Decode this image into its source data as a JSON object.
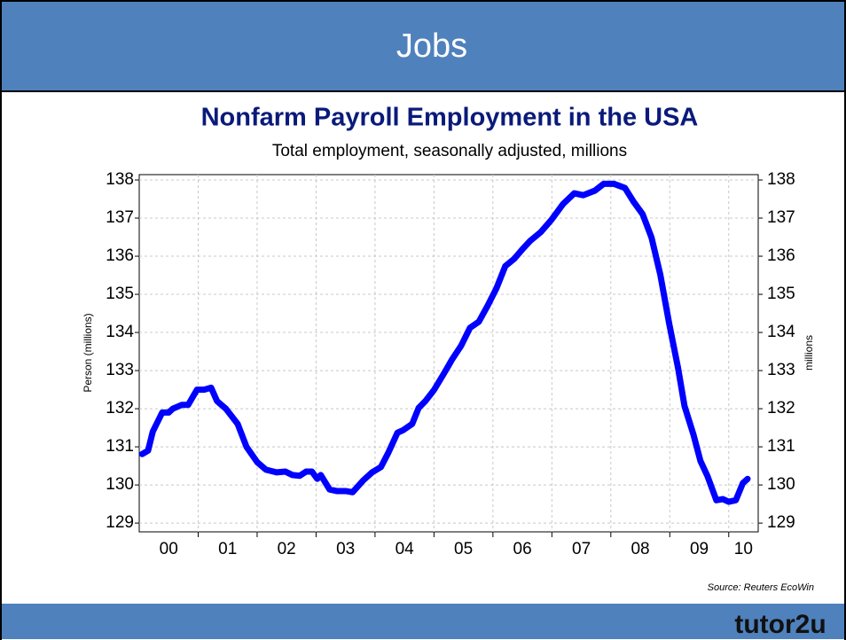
{
  "slide_title": "Jobs",
  "logo": "tutor2u",
  "chart_data": {
    "type": "line",
    "title": "Nonfarm Payroll Employment in the USA",
    "subtitle": "Total employment, seasonally adjusted, millions",
    "ylabel": "Person (millions)",
    "y2label": "millions",
    "source": "Source: Reuters EcoWin",
    "xlim": [
      0,
      10.5
    ],
    "xticks": [
      {
        "value": 0.5,
        "label": "00"
      },
      {
        "value": 1.5,
        "label": "01"
      },
      {
        "value": 2.5,
        "label": "02"
      },
      {
        "value": 3.5,
        "label": "03"
      },
      {
        "value": 4.5,
        "label": "04"
      },
      {
        "value": 5.5,
        "label": "05"
      },
      {
        "value": 6.5,
        "label": "06"
      },
      {
        "value": 7.5,
        "label": "07"
      },
      {
        "value": 8.5,
        "label": "08"
      },
      {
        "value": 9.5,
        "label": "09"
      },
      {
        "value": 10.25,
        "label": "10"
      }
    ],
    "xgrid": [
      1,
      2,
      3,
      4,
      5,
      6,
      7,
      8,
      9,
      10
    ],
    "ylim": [
      128.77,
      138.14
    ],
    "yticks": [
      129,
      130,
      131,
      132,
      133,
      134,
      135,
      136,
      137,
      138
    ],
    "y2lim": [
      128.77,
      138.14
    ],
    "y2ticks": [
      129,
      130,
      131,
      132,
      133,
      134,
      135,
      136,
      137,
      138
    ],
    "grid": true,
    "series": [
      {
        "name": "Nonfarm Payroll Employment",
        "color": "#0000ff",
        "x": [
          0.05,
          0.15,
          0.23,
          0.39,
          0.5,
          0.57,
          0.72,
          0.83,
          0.98,
          1.1,
          1.22,
          1.32,
          1.47,
          1.67,
          1.82,
          2.0,
          2.15,
          2.33,
          2.48,
          2.6,
          2.72,
          2.83,
          2.93,
          3.02,
          3.08,
          3.23,
          3.35,
          3.5,
          3.62,
          3.8,
          3.95,
          4.1,
          4.23,
          4.38,
          4.48,
          4.63,
          4.74,
          4.86,
          5.0,
          5.16,
          5.31,
          5.46,
          5.61,
          5.76,
          5.91,
          6.06,
          6.21,
          6.36,
          6.51,
          6.63,
          6.81,
          6.99,
          7.19,
          7.38,
          7.53,
          7.73,
          7.88,
          8.05,
          8.24,
          8.39,
          8.54,
          8.69,
          8.84,
          8.99,
          9.14,
          9.25,
          9.4,
          9.52,
          9.64,
          9.79,
          9.9,
          10.0,
          10.12,
          10.24,
          10.32
        ],
        "values": [
          130.81,
          130.9,
          131.4,
          131.9,
          131.9,
          132.0,
          132.1,
          132.1,
          132.5,
          132.5,
          132.55,
          132.2,
          132.0,
          131.6,
          131.0,
          130.6,
          130.4,
          130.33,
          130.35,
          130.26,
          130.24,
          130.35,
          130.35,
          130.16,
          130.26,
          129.88,
          129.84,
          129.84,
          129.81,
          130.12,
          130.33,
          130.47,
          130.86,
          131.37,
          131.44,
          131.6,
          132.02,
          132.21,
          132.49,
          132.9,
          133.3,
          133.65,
          134.12,
          134.28,
          134.7,
          135.16,
          135.74,
          135.93,
          136.2,
          136.4,
          136.63,
          136.95,
          137.37,
          137.65,
          137.6,
          137.72,
          137.9,
          137.9,
          137.79,
          137.42,
          137.1,
          136.49,
          135.51,
          134.23,
          133.07,
          132.07,
          131.33,
          130.63,
          130.23,
          129.6,
          129.63,
          129.56,
          129.6,
          130.05,
          130.16
        ]
      }
    ]
  }
}
